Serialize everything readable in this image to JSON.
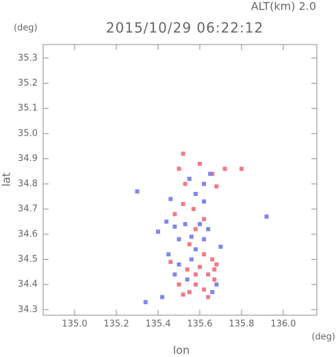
{
  "alt_label": "ALT(km)  2.0",
  "y_unit": "(deg)",
  "x_unit": "(deg)",
  "chart_data": {
    "type": "scatter",
    "title": "2015/10/29 06:22:12",
    "x_label": "lon",
    "y_label": "lat",
    "xlim": [
      134.849,
      136.161
    ],
    "ylim": [
      34.278,
      35.354
    ],
    "xticks": [
      {
        "value": 135.0,
        "label": "135.0"
      },
      135.2,
      135.4,
      135.6,
      135.8,
      {
        "value": 136.0,
        "label": "136.0"
      }
    ],
    "yticks": [
      34.3,
      34.4,
      34.5,
      34.6,
      34.7,
      34.8,
      34.9,
      {
        "value": 35.0,
        "label": "35.0"
      },
      35.1,
      35.2,
      35.3
    ],
    "series": [
      {
        "color": "#f07a86",
        "x": [
          135.52,
          135.5,
          135.53,
          135.6,
          135.66,
          135.68,
          135.72,
          135.8,
          135.52,
          135.57,
          135.48,
          135.62,
          135.58,
          135.55,
          135.62,
          135.66,
          135.68,
          135.6,
          135.54,
          135.64,
          135.67,
          135.58,
          135.62,
          135.5,
          135.55,
          135.64,
          135.52,
          135.67,
          135.58,
          135.46
        ],
        "y": [
          34.92,
          34.86,
          34.8,
          34.88,
          34.84,
          34.79,
          34.86,
          34.86,
          34.72,
          34.7,
          34.68,
          34.66,
          34.62,
          34.56,
          34.52,
          34.5,
          34.48,
          34.47,
          34.46,
          34.44,
          34.42,
          34.4,
          34.38,
          34.4,
          34.37,
          34.35,
          34.36,
          34.46,
          34.44,
          34.49
        ]
      },
      {
        "color": "#7f86ee",
        "x": [
          135.55,
          135.62,
          135.65,
          135.58,
          135.46,
          135.62,
          135.44,
          135.48,
          135.53,
          135.6,
          135.64,
          135.5,
          135.56,
          135.62,
          135.58,
          135.45,
          135.5,
          135.56,
          135.68,
          135.66,
          135.42,
          135.34,
          135.92,
          135.3,
          135.4,
          135.54,
          135.7,
          135.48
        ],
        "y": [
          34.82,
          34.8,
          34.84,
          34.76,
          34.74,
          34.73,
          34.65,
          34.63,
          34.64,
          34.64,
          34.62,
          34.58,
          34.59,
          34.58,
          34.54,
          34.52,
          34.48,
          34.5,
          34.4,
          34.37,
          34.35,
          34.33,
          34.67,
          34.77,
          34.61,
          34.42,
          34.55,
          34.44
        ]
      }
    ]
  }
}
